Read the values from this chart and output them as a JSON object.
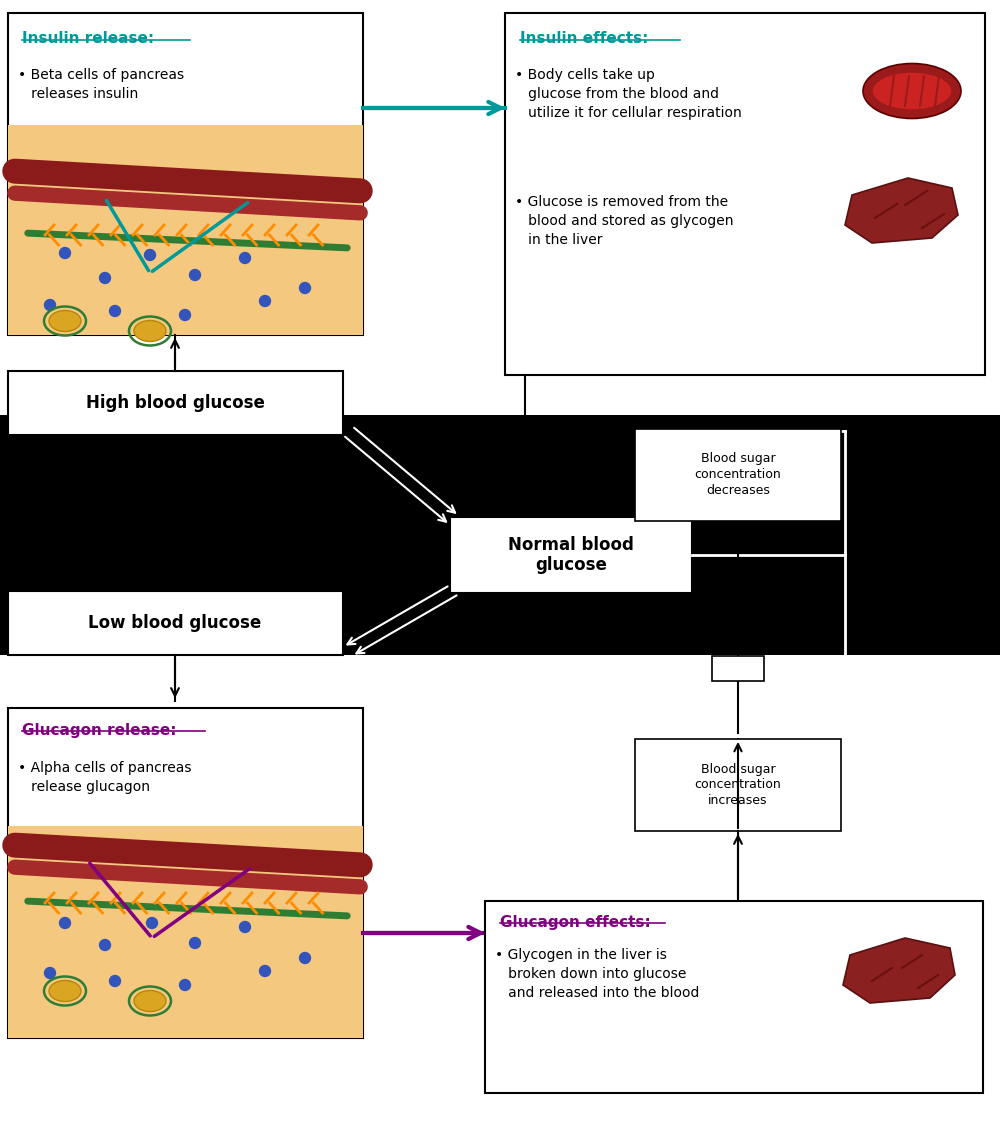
{
  "bg_color": "#ffffff",
  "teal": "#009999",
  "purple": "#800080",
  "black": "#000000",
  "white": "#ffffff",
  "dark_red": "#7B1818",
  "tan": "#F5C880",
  "green": "#2E7D32",
  "blue": "#3355BB",
  "red_vessel": "#8B1A1A",
  "red_vessel2": "#A52A2A",
  "gold": "#DAA520",
  "orange": "#FF8C00",
  "insulin_release_title": "Insulin release:",
  "insulin_release_body": "• Beta cells of pancreas\n   releases insulin",
  "insulin_effects_title": "Insulin effects:",
  "insulin_effects_body1": "• Body cells take up\n   glucose from the blood and\n   utilize it for cellular respiration",
  "insulin_effects_body2": "• Glucose is removed from the\n   blood and stored as glycogen\n   in the liver",
  "high_glucose": "High blood glucose",
  "normal_glucose": "Normal blood\nglucose",
  "low_glucose": "Low blood glucose",
  "decreases": "Blood sugar\nconcentration\ndecreases",
  "increases": "Blood sugar\nconcentration\nincreases",
  "glucagon_release_title": "Glucagon release:",
  "glucagon_release_body": "• Alpha cells of pancreas\n   release glucagon",
  "glucagon_effects_title": "Glucagon effects:",
  "glucagon_effects_body": "• Glycogen in the liver is\n   broken down into glucose\n   and released into the blood"
}
